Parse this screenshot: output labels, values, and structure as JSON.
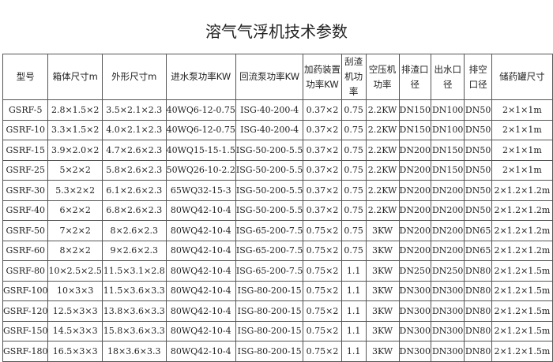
{
  "title": "溶气气浮机技术参数",
  "headers": [
    "型号",
    "箱体尺寸m",
    "外形尺寸m",
    "进水泵功率KW",
    "回流泵功率KW",
    "加药装置功率KW",
    "刮渣机功率",
    "空压机功率",
    "排渣口径",
    "出水口径",
    "排空口径",
    "储药罐尺寸"
  ],
  "rows": [
    [
      "GSRF-5",
      "2.8×1.5×2",
      "3.5×2.1×2.3",
      "40WQ6-12-0.75",
      "ISG-40-200-4",
      "0.37×2",
      "0.75",
      "2.2KW",
      "DN150",
      "DN100",
      "DN50",
      "2×1×1m"
    ],
    [
      "GSRF-10",
      "3.3×1.5×2",
      "4.0×2.1×2.3",
      "40WQ6-12-0.75",
      "ISG-40-200-4",
      "0.37×2",
      "0.75",
      "2.2KW",
      "DN150",
      "DN100",
      "DN50",
      "2×1×1m"
    ],
    [
      "GSRF-15",
      "3.9×2.0×2",
      "4.7×2.6×2.3",
      "40WQ15-15-1.5",
      "ISG-50-200-5.5",
      "0.37×2",
      "0.75",
      "2.2KW",
      "DN200",
      "DN150",
      "DN50",
      "2×1×1m"
    ],
    [
      "GSRF-25",
      "5×2×2",
      "5.8×2.6×2.3",
      "50WQ26-10-2.2",
      "ISG-50-200-5.5",
      "0.37×2",
      "0.75",
      "2.2KW",
      "DN200",
      "DN150",
      "DN50",
      "2×1×1m"
    ],
    [
      "GSRF-30",
      "5.3×2×2",
      "6.1×2.6×2.3",
      "65WQ32-15-3",
      "ISG-50-200-5.5",
      "0.37×2",
      "0.75",
      "2.2KW",
      "DN200",
      "DN200",
      "DN50",
      "2×1.2×1.2m"
    ],
    [
      "GSRF-40",
      "6×2×2",
      "6.8×2.6×2.3",
      "80WQ42-10-4",
      "ISG-50-200-5.5",
      "0.37×2",
      "0.75",
      "2.2KW",
      "DN200",
      "DN200",
      "DN50",
      "2×1.2×1.2m"
    ],
    [
      "GSRF-50",
      "7×2×2",
      "8×2.6×2.3",
      "80WQ42-10-4",
      "ISG-65-200-7.5",
      "0.75×2",
      "0.75",
      "3KW",
      "DN200",
      "DN200",
      "DN65",
      "2×1.2×1.2m"
    ],
    [
      "GSRF-60",
      "8×2×2",
      "9×2.6×2.3",
      "80WQ42-10-4",
      "ISG-65-200-7.5",
      "0.75×2",
      "0.75",
      "3KW",
      "DN200",
      "DN200",
      "DN65",
      "2×1.2×1.2m"
    ],
    [
      "GSRF-80",
      "10×2.5×2.5",
      "11.5×3.1×2.8",
      "80WQ42-10-4",
      "ISG-65-200-7.5",
      "0.75×2",
      "1.1",
      "3KW",
      "DN250",
      "DN250",
      "DN80",
      "2×1.2×1.5m"
    ],
    [
      "GSRF-100",
      "10×3×3",
      "11.5×3.6×3.3",
      "80WQ42-10-4",
      "ISG-80-200-15",
      "0.75×2",
      "1.1",
      "3KW",
      "DN300",
      "DN300",
      "DN80",
      "2×1.2×1.5m"
    ],
    [
      "GSRF-120",
      "12.5×3×3",
      "13.8×3.6×3.3",
      "80WQ42-10-4",
      "ISG-80-200-15",
      "0.75×2",
      "1.1",
      "3KW",
      "DN300",
      "DN300",
      "DN80",
      "2×1.2×1.5m"
    ],
    [
      "GSRF-150",
      "14.5×3×3",
      "15.8×3.6×3.3",
      "80WQ42-10-4",
      "ISG-80-200-15",
      "0.75×2",
      "1.1",
      "3KW",
      "DN300",
      "DN300",
      "DN80",
      "2×1.2×1.5m"
    ],
    [
      "GSRF-180",
      "16.5×3×3",
      "18×3.6×3.3",
      "80WQ42-10-4",
      "ISG-80-200-15",
      "0.75×2",
      "1.1",
      "3KW",
      "DN300",
      "DN300",
      "DN80",
      "2×1.2×1.5m"
    ]
  ]
}
